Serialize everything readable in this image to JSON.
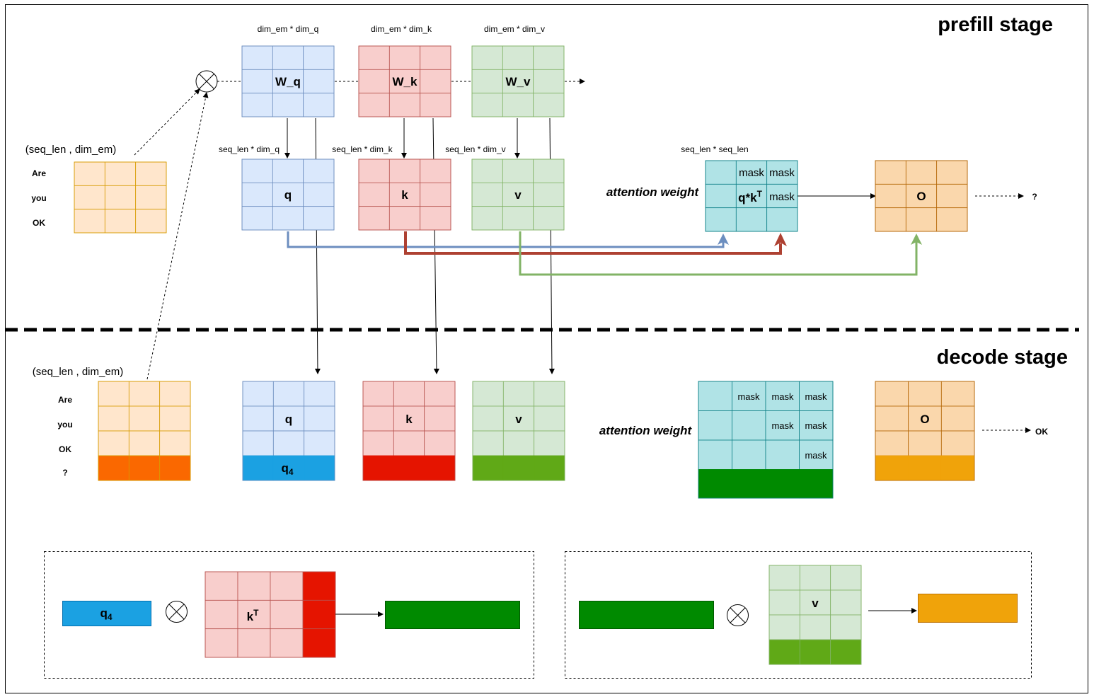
{
  "titles": {
    "prefill": "prefill stage",
    "decode": "decode stage"
  },
  "prefill": {
    "input_shape": "(seq_len , dim_em)",
    "tokens": [
      "Are",
      "you",
      "OK"
    ],
    "weights": [
      {
        "shape": "dim_em * dim_q",
        "label": "W_q"
      },
      {
        "shape": "dim_em * dim_k",
        "label": "W_k"
      },
      {
        "shape": "dim_em * dim_v",
        "label": "W_v"
      }
    ],
    "projections": [
      {
        "shape": "seq_len * dim_q",
        "label": "q"
      },
      {
        "shape": "seq_len * dim_k",
        "label": "k"
      },
      {
        "shape": "seq_len * dim_v",
        "label": "v"
      }
    ],
    "attention": {
      "shape": "seq_len * seq_len",
      "label": "attention weight",
      "cell_label": "q*k",
      "cell_label_sup": "T",
      "mask": "mask"
    },
    "output_label": "O",
    "next_token": "?"
  },
  "decode": {
    "input_shape": "(seq_len , dim_em)",
    "tokens": [
      "Are",
      "you",
      "OK",
      "?"
    ],
    "q_label": "q",
    "q_new_label": "q",
    "q_new_sub": "4",
    "k_label": "k",
    "v_label": "v",
    "attention_label": "attention weight",
    "mask": "mask",
    "output_label": "O",
    "next_token": "OK",
    "detail": {
      "q_label": "q",
      "q_sub": "4",
      "kT_label": "k",
      "kT_sup": "T",
      "v_label": "v"
    }
  },
  "colors": {
    "blue_fill": "#dae8fc",
    "blue_stroke": "#6c8ebf",
    "blue_new": "#1ba1e2",
    "red_fill": "#f8cecc",
    "red_stroke": "#b85450",
    "red_new": "#e51400",
    "green_fill": "#d5e8d4",
    "green_stroke": "#82b366",
    "green_new": "#60a917",
    "teal_fill": "#b0e3e6",
    "teal_stroke": "#0e8088",
    "attn_new": "#008a00",
    "orange_fill": "#fad7ac",
    "orange_stroke": "#b46504",
    "orange_new": "#f0a30a",
    "input_fill": "#ffe6cc",
    "input_stroke": "#d79b00",
    "input_new": "#fa6800"
  }
}
